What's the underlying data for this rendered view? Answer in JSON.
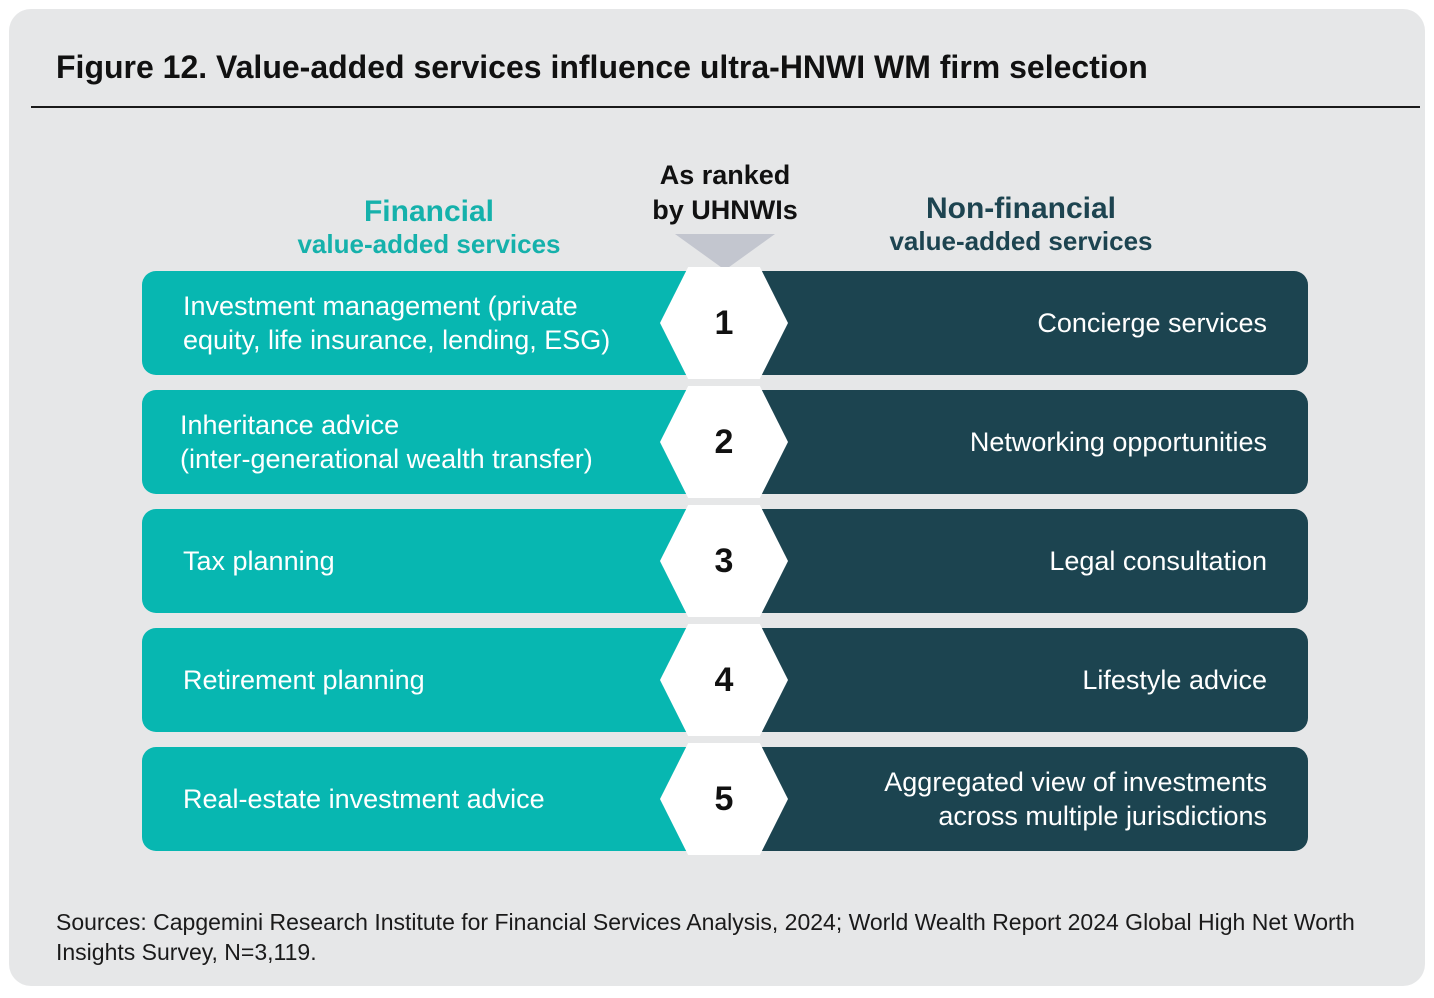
{
  "title": "Figure 12. Value-added services influence ultra-HNWI WM firm selection",
  "headers": {
    "financial_title": "Financial",
    "financial_subtitle": "value-added services",
    "rank_title": "As ranked\nby UHNWIs",
    "nonfinancial_title": "Non-financial",
    "nonfinancial_subtitle": "value-added services"
  },
  "rows": [
    {
      "rank": "1",
      "financial": "Investment management (private\nequity, life insurance, lending, ESG)",
      "nonfinancial": "Concierge services"
    },
    {
      "rank": "2",
      "financial": "Inheritance advice\n(inter-generational wealth transfer)",
      "nonfinancial": "Networking opportunities"
    },
    {
      "rank": "3",
      "financial": "Tax planning",
      "nonfinancial": "Legal consultation"
    },
    {
      "rank": "4",
      "financial": "Retirement planning",
      "nonfinancial": "Lifestyle advice"
    },
    {
      "rank": "5",
      "financial": "Real-estate investment advice",
      "nonfinancial": "Aggregated view of investments\nacross multiple jurisdictions"
    }
  ],
  "sources": "Sources: Capgemini Research Institute for Financial Services Analysis, 2024; World Wealth Report 2024 Global High Net Worth Insights Survey, N=3,119.",
  "colors": {
    "financial": "#07b7b1",
    "nonfinancial": "#1c4450",
    "background": "#e6e7e8",
    "arrow": "#c3c6cf"
  }
}
